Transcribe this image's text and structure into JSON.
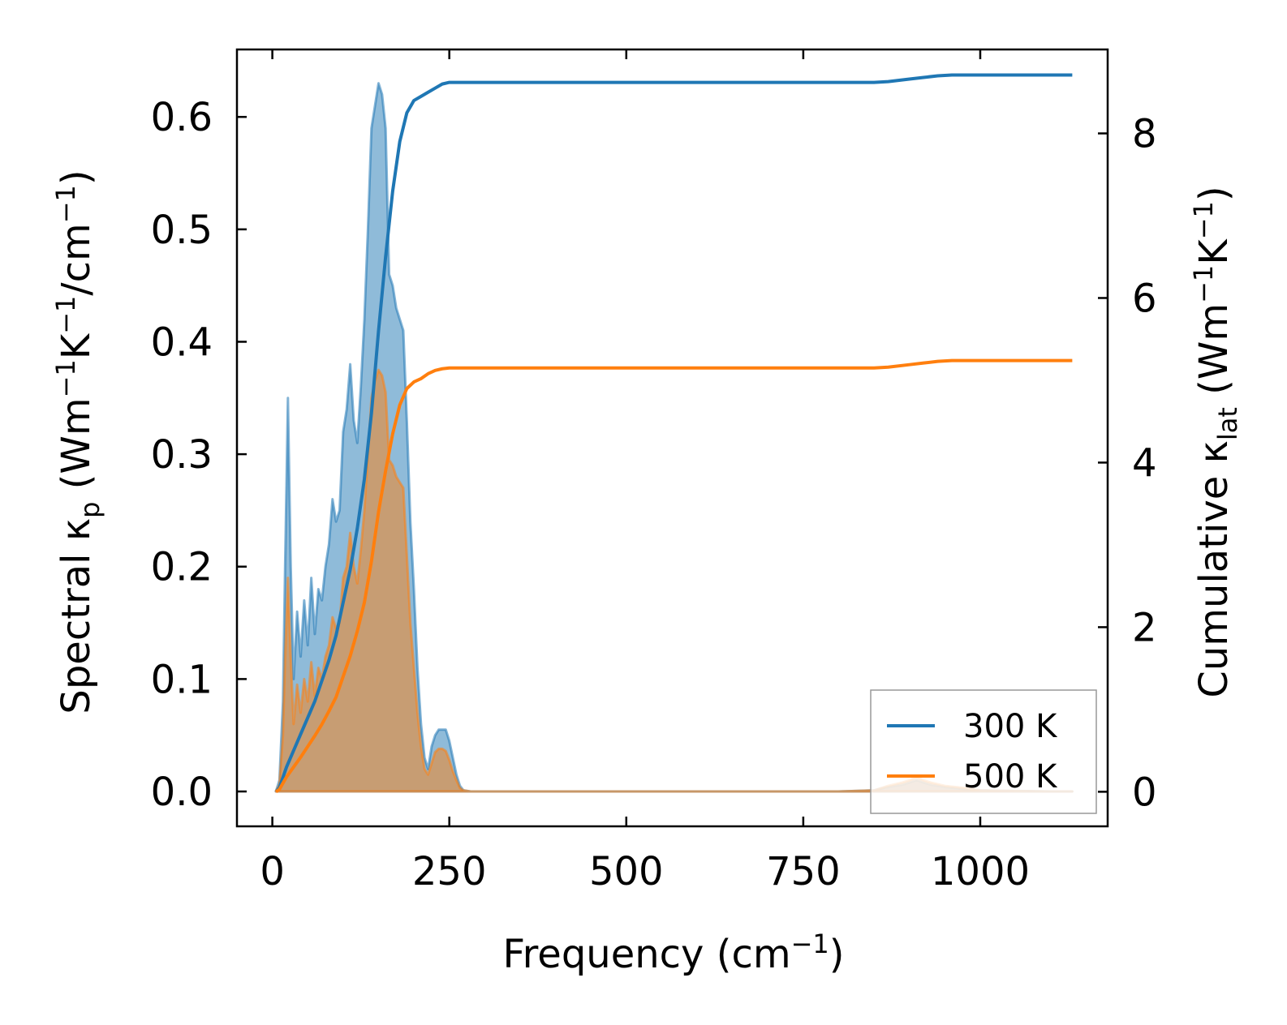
{
  "chart_data": {
    "type": "line",
    "xlabel_main": "Frequency (cm",
    "xlabel_sup": "−1",
    "xlabel_end": ")",
    "ylabel_left": {
      "prefix": "Spectral κ",
      "sub": "p",
      "mid1": " (Wm",
      "sup1": "−1",
      "mid2": "K",
      "sup2": "−1",
      "mid3": "/cm",
      "sup3": "−1",
      "end": ")"
    },
    "ylabel_right": {
      "prefix": "Cumulative κ",
      "sub": "lat",
      "mid1": " (Wm",
      "sup1": "−1",
      "mid2": "K",
      "sup2": "−1",
      "end": ")"
    },
    "xlim": [
      -50,
      1180
    ],
    "ylim_left": [
      -0.031,
      0.66
    ],
    "ylim_right": [
      -0.42,
      9.02
    ],
    "xticks": [
      0,
      250,
      500,
      750,
      1000
    ],
    "xtick_labels": [
      "0",
      "250",
      "500",
      "750",
      "1000"
    ],
    "yticks_left": [
      0.0,
      0.1,
      0.2,
      0.3,
      0.4,
      0.5,
      0.6
    ],
    "ytick_labels_left": [
      "0.0",
      "0.1",
      "0.2",
      "0.3",
      "0.4",
      "0.5",
      "0.6"
    ],
    "yticks_right": [
      0,
      2,
      4,
      6,
      8
    ],
    "ytick_labels_right": [
      "0",
      "2",
      "4",
      "6",
      "8"
    ],
    "legend": [
      "300 K",
      "500 K"
    ],
    "colors": {
      "s300": "#1f77b4",
      "s500": "#ff7f0e"
    },
    "spectral": [
      {
        "name": "300 K",
        "x": [
          5,
          10,
          15,
          18,
          22,
          26,
          30,
          35,
          40,
          45,
          50,
          55,
          60,
          65,
          70,
          75,
          80,
          85,
          90,
          95,
          100,
          105,
          110,
          115,
          120,
          125,
          130,
          135,
          140,
          145,
          150,
          155,
          160,
          165,
          170,
          175,
          180,
          185,
          190,
          195,
          200,
          205,
          210,
          215,
          220,
          225,
          230,
          235,
          240,
          245,
          250,
          255,
          260,
          265,
          270,
          280,
          300,
          400,
          600,
          800,
          850,
          870,
          890,
          900,
          910,
          920,
          930,
          950,
          980,
          1000,
          1050,
          1100,
          1130
        ],
        "y": [
          0.0,
          0.01,
          0.08,
          0.2,
          0.35,
          0.2,
          0.1,
          0.16,
          0.12,
          0.17,
          0.13,
          0.19,
          0.14,
          0.18,
          0.17,
          0.2,
          0.22,
          0.26,
          0.24,
          0.25,
          0.32,
          0.34,
          0.38,
          0.33,
          0.31,
          0.36,
          0.42,
          0.5,
          0.59,
          0.61,
          0.63,
          0.62,
          0.59,
          0.46,
          0.45,
          0.43,
          0.42,
          0.41,
          0.33,
          0.24,
          0.18,
          0.11,
          0.06,
          0.03,
          0.02,
          0.04,
          0.05,
          0.055,
          0.055,
          0.055,
          0.045,
          0.03,
          0.015,
          0.005,
          0.001,
          0.0,
          0.0,
          0.0,
          0.0,
          0.0,
          0.001,
          0.004,
          0.006,
          0.008,
          0.01,
          0.008,
          0.006,
          0.004,
          0.002,
          0.001,
          0.0005,
          0.0,
          0.0
        ]
      },
      {
        "name": "500 K",
        "x": [
          5,
          10,
          15,
          18,
          22,
          26,
          30,
          35,
          40,
          45,
          50,
          55,
          60,
          65,
          70,
          75,
          80,
          85,
          90,
          95,
          100,
          105,
          110,
          115,
          120,
          125,
          130,
          135,
          140,
          145,
          150,
          155,
          160,
          165,
          170,
          175,
          180,
          185,
          190,
          195,
          200,
          205,
          210,
          215,
          220,
          225,
          230,
          235,
          240,
          245,
          250,
          255,
          260,
          265,
          270,
          280,
          300,
          400,
          600,
          800,
          850,
          870,
          890,
          900,
          910,
          920,
          930,
          950,
          980,
          1000,
          1050,
          1100,
          1130
        ],
        "y": [
          0.0,
          0.006,
          0.05,
          0.12,
          0.19,
          0.12,
          0.06,
          0.095,
          0.07,
          0.1,
          0.08,
          0.115,
          0.085,
          0.11,
          0.1,
          0.12,
          0.13,
          0.155,
          0.145,
          0.15,
          0.19,
          0.2,
          0.23,
          0.2,
          0.185,
          0.215,
          0.25,
          0.3,
          0.35,
          0.365,
          0.375,
          0.37,
          0.355,
          0.295,
          0.29,
          0.28,
          0.275,
          0.27,
          0.21,
          0.15,
          0.11,
          0.07,
          0.04,
          0.02,
          0.015,
          0.025,
          0.035,
          0.038,
          0.038,
          0.036,
          0.028,
          0.018,
          0.01,
          0.003,
          0.001,
          0.0,
          0.0,
          0.0,
          0.0,
          0.0,
          0.001,
          0.005,
          0.008,
          0.01,
          0.013,
          0.01,
          0.008,
          0.005,
          0.003,
          0.001,
          0.0005,
          0.0,
          0.0
        ]
      }
    ],
    "cumulative": [
      {
        "name": "300 K",
        "x": [
          5,
          10,
          20,
          30,
          40,
          50,
          60,
          70,
          80,
          90,
          100,
          110,
          120,
          130,
          140,
          150,
          160,
          170,
          180,
          190,
          200,
          210,
          220,
          230,
          240,
          250,
          260,
          280,
          300,
          500,
          800,
          850,
          870,
          900,
          920,
          940,
          960,
          1000,
          1050,
          1130
        ],
        "y": [
          0.0,
          0.05,
          0.3,
          0.5,
          0.7,
          0.9,
          1.1,
          1.35,
          1.6,
          1.9,
          2.3,
          2.7,
          3.2,
          3.8,
          4.6,
          5.6,
          6.5,
          7.3,
          7.9,
          8.25,
          8.4,
          8.45,
          8.5,
          8.55,
          8.6,
          8.62,
          8.62,
          8.62,
          8.62,
          8.62,
          8.62,
          8.62,
          8.63,
          8.66,
          8.68,
          8.7,
          8.71,
          8.71,
          8.71,
          8.71
        ]
      },
      {
        "name": "500 K",
        "x": [
          5,
          10,
          20,
          30,
          40,
          50,
          60,
          70,
          80,
          90,
          100,
          110,
          120,
          130,
          140,
          150,
          160,
          170,
          180,
          190,
          200,
          210,
          220,
          230,
          240,
          250,
          260,
          280,
          300,
          500,
          800,
          850,
          870,
          900,
          920,
          940,
          960,
          1000,
          1050,
          1130
        ],
        "y": [
          0.0,
          0.03,
          0.18,
          0.3,
          0.42,
          0.55,
          0.68,
          0.82,
          0.98,
          1.15,
          1.4,
          1.65,
          1.95,
          2.3,
          2.8,
          3.4,
          3.9,
          4.35,
          4.7,
          4.9,
          4.98,
          5.02,
          5.08,
          5.12,
          5.14,
          5.15,
          5.15,
          5.15,
          5.15,
          5.15,
          5.15,
          5.15,
          5.16,
          5.19,
          5.21,
          5.23,
          5.24,
          5.24,
          5.24,
          5.24
        ]
      }
    ]
  }
}
